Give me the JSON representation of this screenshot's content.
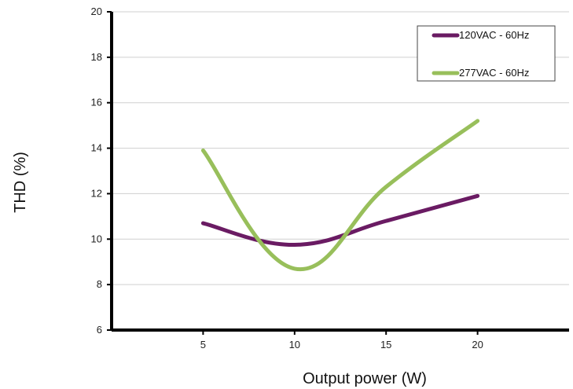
{
  "chart_data": {
    "type": "line",
    "xlabel": "Output power (W)",
    "ylabel": "THD (%)",
    "x": [
      5,
      10,
      15,
      20
    ],
    "xlim": [
      0,
      25
    ],
    "ylim": [
      6,
      20
    ],
    "yticks": [
      6,
      8,
      10,
      12,
      14,
      16,
      18,
      20
    ],
    "grid": "horizontal",
    "legend_position": "top-right",
    "series": [
      {
        "name": "120VAC - 60Hz",
        "color": "#6a1b63",
        "values": [
          10.7,
          9.75,
          10.8,
          11.9
        ]
      },
      {
        "name": "277VAC - 60Hz",
        "color": "#98bf5b",
        "values": [
          13.9,
          8.7,
          12.3,
          15.2
        ]
      }
    ]
  }
}
